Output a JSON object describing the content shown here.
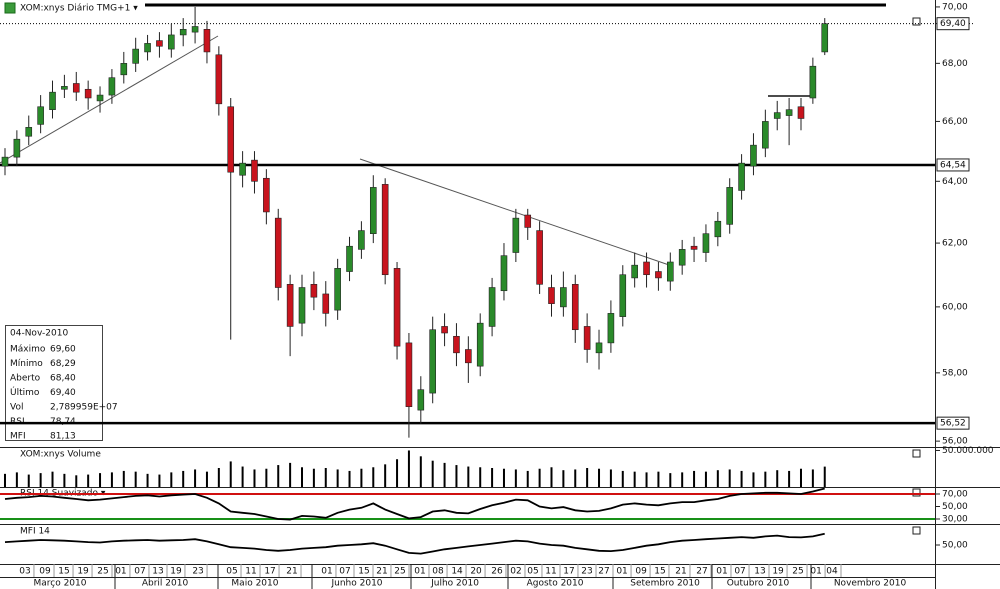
{
  "chart_data": [
    {
      "type": "candlestick",
      "title": "XOM:xnys Diário TMG+1 ▾",
      "log_scale": true,
      "up_color": "#2a8a2a",
      "down_color": "#c8141e",
      "xlim": [
        -0.42,
        78.28
      ],
      "ylim": [
        55.86,
        70.25
      ],
      "yticks": [
        {
          "value": 56,
          "label": "56,00"
        },
        {
          "value": 58,
          "label": "58,00"
        },
        {
          "value": 60,
          "label": "60,00"
        },
        {
          "value": 62,
          "label": "62,00"
        },
        {
          "value": 64,
          "label": "64,00"
        },
        {
          "value": 66,
          "label": "66,00"
        },
        {
          "value": 68,
          "label": "68,00"
        },
        {
          "value": 70,
          "label": "70,00"
        }
      ],
      "levels": [
        {
          "value": 69.4,
          "label": "69,40",
          "style": "dotted"
        },
        {
          "value": 64.54,
          "label": "64,54",
          "style": "solid"
        },
        {
          "value": 56.52,
          "label": "56,52",
          "style": "solid"
        }
      ],
      "open": [
        64.5,
        64.8,
        65.5,
        65.9,
        66.4,
        67.1,
        67.3,
        67.1,
        66.7,
        66.9,
        67.6,
        68.0,
        68.4,
        68.8,
        68.5,
        69.0,
        69.1,
        69.2,
        68.3,
        66.5,
        64.2,
        64.7,
        64.1,
        62.8,
        60.7,
        59.5,
        60.7,
        60.4,
        59.9,
        61.1,
        61.8,
        62.3,
        63.9,
        61.2,
        58.9,
        56.9,
        57.4,
        59.4,
        59.1,
        58.7,
        58.2,
        59.4,
        60.5,
        61.7,
        62.9,
        62.4,
        60.6,
        60.0,
        60.7,
        59.4,
        58.6,
        58.9,
        59.7,
        60.9,
        61.4,
        61.1,
        60.8,
        61.3,
        61.9,
        61.7,
        62.2,
        62.6,
        63.7,
        64.5,
        65.1,
        66.1,
        66.2,
        66.5,
        66.8,
        68.4
      ],
      "high": [
        65.1,
        65.7,
        66.2,
        66.9,
        67.4,
        67.6,
        67.7,
        67.4,
        67.2,
        67.8,
        68.4,
        68.9,
        69.0,
        69.1,
        69.4,
        69.6,
        70.0,
        69.5,
        68.6,
        66.8,
        65.0,
        65.0,
        64.4,
        63.1,
        61.0,
        61.0,
        61.1,
        60.8,
        61.5,
        62.2,
        62.7,
        64.2,
        64.1,
        61.4,
        59.2,
        57.9,
        59.7,
        59.8,
        59.5,
        59.1,
        59.8,
        60.9,
        62.0,
        63.1,
        63.1,
        62.7,
        61.0,
        61.1,
        61.0,
        59.8,
        59.3,
        60.2,
        61.3,
        61.7,
        61.7,
        61.4,
        61.7,
        62.1,
        62.2,
        62.6,
        63.0,
        64.1,
        64.9,
        65.6,
        66.4,
        66.7,
        66.8,
        66.8,
        68.2,
        69.6
      ],
      "low": [
        64.2,
        64.5,
        65.2,
        65.6,
        66.1,
        66.8,
        66.7,
        66.4,
        66.3,
        66.6,
        67.3,
        67.7,
        68.1,
        68.2,
        68.2,
        68.6,
        68.7,
        68.0,
        66.2,
        59.0,
        63.8,
        63.6,
        62.6,
        60.2,
        58.5,
        59.1,
        59.9,
        59.4,
        59.6,
        60.8,
        61.5,
        62.0,
        60.7,
        58.4,
        56.1,
        56.5,
        57.1,
        58.8,
        58.2,
        57.7,
        57.9,
        59.1,
        60.2,
        61.4,
        62.1,
        60.4,
        59.7,
        59.7,
        58.9,
        58.3,
        58.1,
        58.6,
        59.4,
        60.6,
        60.6,
        60.5,
        60.5,
        61.0,
        61.4,
        61.4,
        61.9,
        62.3,
        63.4,
        64.2,
        64.8,
        65.7,
        65.2,
        65.7,
        66.6,
        68.29
      ],
      "close": [
        64.8,
        65.4,
        65.8,
        66.5,
        67.0,
        67.2,
        67.0,
        66.8,
        66.9,
        67.5,
        68.0,
        68.5,
        68.7,
        68.6,
        69.0,
        69.2,
        69.3,
        68.4,
        66.6,
        64.3,
        64.6,
        64.0,
        63.0,
        60.6,
        59.4,
        60.6,
        60.3,
        59.8,
        61.2,
        61.9,
        62.4,
        63.8,
        61.0,
        58.8,
        57.0,
        57.5,
        59.3,
        59.2,
        58.6,
        58.3,
        59.5,
        60.6,
        61.6,
        62.8,
        62.5,
        60.7,
        60.1,
        60.6,
        59.3,
        58.7,
        58.9,
        59.8,
        61.0,
        61.3,
        61.0,
        60.9,
        61.4,
        61.8,
        61.8,
        62.3,
        62.7,
        63.8,
        64.6,
        65.2,
        66.0,
        66.3,
        66.4,
        66.1,
        67.9,
        69.4
      ],
      "xticks": [
        {
          "value": 1.68,
          "label": "03"
        },
        {
          "value": 3.37,
          "label": "09"
        },
        {
          "value": 4.97,
          "label": "15"
        },
        {
          "value": 6.57,
          "label": "19"
        },
        {
          "value": 8.25,
          "label": "25"
        },
        {
          "value": 9.76,
          "label": "01"
        },
        {
          "value": 11.36,
          "label": "07"
        },
        {
          "value": 12.88,
          "label": "13"
        },
        {
          "value": 14.39,
          "label": "19"
        },
        {
          "value": 16.25,
          "label": "23"
        },
        {
          "value": 19.11,
          "label": "05"
        },
        {
          "value": 20.71,
          "label": "11"
        },
        {
          "value": 22.31,
          "label": "17"
        },
        {
          "value": 24.16,
          "label": "21"
        },
        {
          "value": 27.1,
          "label": "01"
        },
        {
          "value": 28.62,
          "label": "07"
        },
        {
          "value": 30.22,
          "label": "15"
        },
        {
          "value": 31.73,
          "label": "21"
        },
        {
          "value": 33.25,
          "label": "25"
        },
        {
          "value": 34.93,
          "label": "01"
        },
        {
          "value": 36.45,
          "label": "08"
        },
        {
          "value": 38.05,
          "label": "14"
        },
        {
          "value": 39.65,
          "label": "20"
        },
        {
          "value": 41.41,
          "label": "26"
        },
        {
          "value": 43.01,
          "label": "02"
        },
        {
          "value": 44.44,
          "label": "05"
        },
        {
          "value": 45.96,
          "label": "11"
        },
        {
          "value": 47.47,
          "label": "17"
        },
        {
          "value": 48.99,
          "label": "23"
        },
        {
          "value": 50.42,
          "label": "27"
        },
        {
          "value": 51.94,
          "label": "01"
        },
        {
          "value": 53.54,
          "label": "09"
        },
        {
          "value": 55.13,
          "label": "15"
        },
        {
          "value": 56.9,
          "label": "21"
        },
        {
          "value": 58.67,
          "label": "27"
        },
        {
          "value": 60.35,
          "label": "01"
        },
        {
          "value": 61.87,
          "label": "07"
        },
        {
          "value": 63.55,
          "label": "13"
        },
        {
          "value": 65.07,
          "label": "19"
        },
        {
          "value": 66.75,
          "label": "25"
        },
        {
          "value": 68.27,
          "label": "01"
        },
        {
          "value": 69.61,
          "label": "04"
        }
      ],
      "month_labels": [
        {
          "value": 4.63,
          "label": "Março 2010"
        },
        {
          "value": 13.47,
          "label": "Abril 2010"
        },
        {
          "value": 21.04,
          "label": "Maio 2010"
        },
        {
          "value": 29.63,
          "label": "Junho 2010"
        },
        {
          "value": 37.88,
          "label": "Julho 2010"
        },
        {
          "value": 46.3,
          "label": "Agosto 2010"
        },
        {
          "value": 55.56,
          "label": "Setembro 2010"
        },
        {
          "value": 63.38,
          "label": "Outubro 2010"
        },
        {
          "value": 72.81,
          "label": "Novembro 2010"
        }
      ]
    },
    {
      "type": "bar",
      "title": "XOM:xnys Volume",
      "color": "#000000",
      "xlim": [
        -0.42,
        78.28
      ],
      "ylim": [
        0,
        52000000
      ],
      "yticks": [
        {
          "value": 50000000,
          "label": "50.000.000"
        }
      ],
      "values": [
        18000000,
        20000000,
        17000000,
        19000000,
        21000000,
        18000000,
        16000000,
        17000000,
        19000000,
        20000000,
        22000000,
        21000000,
        18000000,
        17000000,
        20000000,
        22000000,
        24000000,
        21000000,
        26000000,
        35000000,
        28000000,
        24000000,
        25000000,
        30000000,
        33000000,
        27000000,
        25000000,
        26000000,
        24000000,
        22000000,
        25000000,
        27000000,
        31000000,
        38000000,
        50000000,
        42000000,
        36000000,
        33000000,
        30000000,
        28000000,
        27000000,
        26000000,
        25000000,
        24000000,
        22000000,
        25000000,
        27000000,
        23000000,
        24000000,
        26000000,
        25000000,
        24000000,
        22000000,
        21000000,
        20000000,
        21000000,
        19000000,
        20000000,
        22000000,
        21000000,
        23000000,
        24000000,
        22000000,
        20000000,
        21000000,
        23000000,
        22000000,
        25000000,
        24000000,
        27899590
      ]
    },
    {
      "type": "line",
      "title": "RSI 14 Suavizado ▾",
      "color": "#000000",
      "xlim": [
        -0.42,
        78.28
      ],
      "ylim": [
        23.6,
        81.2
      ],
      "yticks": [
        {
          "value": 70,
          "label": "70,00"
        },
        {
          "value": 50,
          "label": "50,00"
        },
        {
          "value": 30,
          "label": "30,00"
        }
      ],
      "reference_lines": [
        {
          "value": 70,
          "color": "#d01010"
        },
        {
          "value": 30,
          "color": "#189018"
        }
      ],
      "values": [
        62,
        64,
        65,
        67,
        66,
        64,
        62,
        60,
        61,
        63,
        65,
        67,
        68,
        66,
        68,
        69,
        70,
        64,
        55,
        42,
        40,
        38,
        34,
        30,
        29,
        35,
        34,
        32,
        40,
        45,
        48,
        55,
        45,
        38,
        31,
        33,
        42,
        44,
        40,
        39,
        46,
        52,
        56,
        61,
        60,
        50,
        47,
        49,
        44,
        42,
        43,
        47,
        53,
        55,
        53,
        52,
        55,
        57,
        57,
        60,
        62,
        67,
        70,
        71,
        72,
        72,
        71,
        70,
        74,
        78.74
      ]
    },
    {
      "type": "line",
      "title": "MFI 14",
      "color": "#000000",
      "xlim": [
        -0.42,
        78.28
      ],
      "ylim": [
        0,
        100
      ],
      "yticks": [
        {
          "value": 50,
          "label": "50,00"
        }
      ],
      "values": [
        58,
        60,
        62,
        64,
        63,
        62,
        60,
        58,
        57,
        60,
        62,
        63,
        64,
        62,
        63,
        64,
        66,
        60,
        52,
        44,
        42,
        40,
        36,
        34,
        36,
        40,
        42,
        44,
        48,
        50,
        52,
        55,
        48,
        38,
        28,
        26,
        32,
        38,
        42,
        46,
        50,
        54,
        58,
        62,
        60,
        54,
        50,
        48,
        42,
        38,
        34,
        33,
        36,
        42,
        48,
        52,
        58,
        62,
        64,
        66,
        68,
        70,
        72,
        70,
        74,
        76,
        72,
        71,
        74,
        81.13
      ]
    }
  ],
  "info_box": {
    "date": "04-Nov-2010",
    "rows": [
      {
        "label": "Máximo",
        "value": "69,60"
      },
      {
        "label": "Mínimo",
        "value": "68,29"
      },
      {
        "label": "Aberto",
        "value": "68,40"
      },
      {
        "label": "Último",
        "value": "69,40"
      },
      {
        "label": "Vol",
        "value": "2,789959E+07"
      },
      {
        "label": "RSI",
        "value": "78,74"
      },
      {
        "label": "MFI",
        "value": "81,13"
      }
    ]
  }
}
